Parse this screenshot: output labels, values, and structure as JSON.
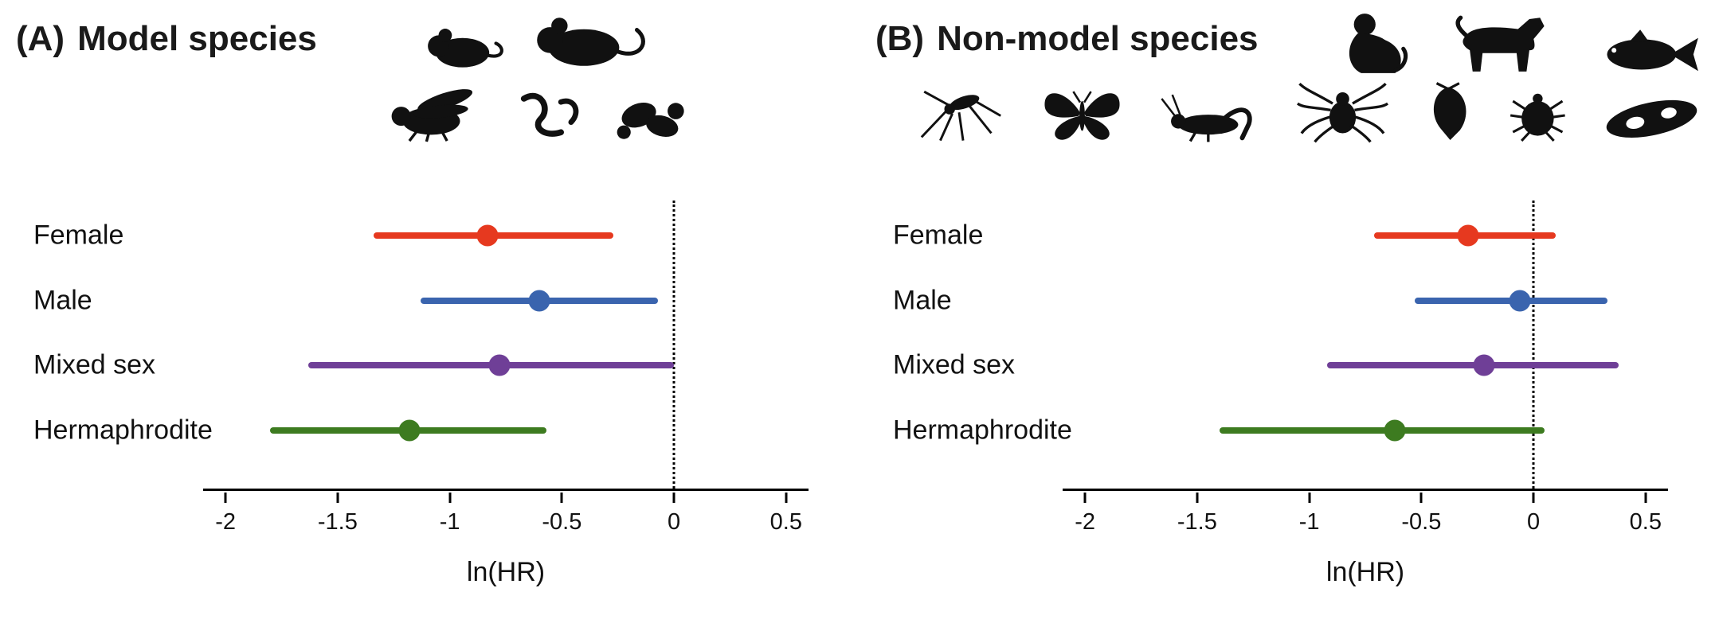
{
  "panels": [
    {
      "label": "(A)",
      "title": "Model species",
      "species_icons": [
        "mouse-icon",
        "rat-icon",
        "fly-icon",
        "worm-icon",
        "yeast-icon"
      ]
    },
    {
      "label": "(B)",
      "title": "Non-model species",
      "species_icons": [
        "monkey-icon",
        "dog-icon",
        "fish-icon",
        "mosquito-icon",
        "butterfly-icon",
        "cricket-icon",
        "spider-icon",
        "daphnia-icon",
        "mite-icon",
        "paramecium-icon"
      ]
    }
  ],
  "chart_data": [
    {
      "type": "forest",
      "panel_label": "(A)",
      "title": "Model species",
      "xlabel": "ln(HR)",
      "xlim": [
        -2.1,
        0.6
      ],
      "xticks": [
        {
          "value": -2,
          "label": "-2"
        },
        {
          "value": -1.5,
          "label": "-1.5"
        },
        {
          "value": -1,
          "label": "-1"
        },
        {
          "value": -0.5,
          "label": "-0.5"
        },
        {
          "value": 0,
          "label": "0"
        },
        {
          "value": 0.5,
          "label": "0.5"
        }
      ],
      "reference_line": 0,
      "grid": false,
      "legend": "none",
      "categories": [
        "Female",
        "Male",
        "Mixed sex",
        "Hermaphrodite"
      ],
      "series": [
        {
          "category": "Female",
          "estimate": -0.83,
          "ci_low": -1.34,
          "ci_high": -0.27,
          "color": "#e6391f"
        },
        {
          "category": "Male",
          "estimate": -0.6,
          "ci_low": -1.13,
          "ci_high": -0.07,
          "color": "#3a64ae"
        },
        {
          "category": "Mixed sex",
          "estimate": -0.78,
          "ci_low": -1.63,
          "ci_high": 0.0,
          "color": "#6f3f97"
        },
        {
          "category": "Hermaphrodite",
          "estimate": -1.18,
          "ci_low": -1.8,
          "ci_high": -0.57,
          "color": "#3d7b20"
        }
      ]
    },
    {
      "type": "forest",
      "panel_label": "(B)",
      "title": "Non-model species",
      "xlabel": "ln(HR)",
      "xlim": [
        -2.1,
        0.6
      ],
      "xticks": [
        {
          "value": -2,
          "label": "-2"
        },
        {
          "value": -1.5,
          "label": "-1.5"
        },
        {
          "value": -1,
          "label": "-1"
        },
        {
          "value": -0.5,
          "label": "-0.5"
        },
        {
          "value": 0,
          "label": "0"
        },
        {
          "value": 0.5,
          "label": "0.5"
        }
      ],
      "reference_line": 0,
      "grid": false,
      "legend": "none",
      "categories": [
        "Female",
        "Male",
        "Mixed sex",
        "Hermaphrodite"
      ],
      "series": [
        {
          "category": "Female",
          "estimate": -0.29,
          "ci_low": -0.71,
          "ci_high": 0.1,
          "color": "#e6391f"
        },
        {
          "category": "Male",
          "estimate": -0.06,
          "ci_low": -0.53,
          "ci_high": 0.33,
          "color": "#3a64ae"
        },
        {
          "category": "Mixed sex",
          "estimate": -0.22,
          "ci_low": -0.92,
          "ci_high": 0.38,
          "color": "#6f3f97"
        },
        {
          "category": "Hermaphrodite",
          "estimate": -0.62,
          "ci_low": -1.4,
          "ci_high": 0.05,
          "color": "#3d7b20"
        }
      ]
    }
  ]
}
